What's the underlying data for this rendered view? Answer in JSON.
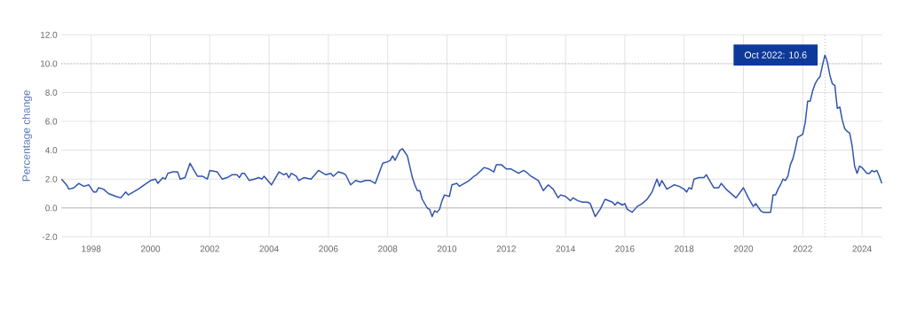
{
  "chart_data": {
    "type": "line",
    "ylabel": "Percentage change",
    "x": [
      "1997-01",
      "1997-03",
      "1997-04",
      "1997-06",
      "1997-08",
      "1997-10",
      "1997-12",
      "1998-02",
      "1998-03",
      "1998-04",
      "1998-06",
      "1998-08",
      "1998-11",
      "1999-01",
      "1999-03",
      "1999-04",
      "1999-08",
      "2000-01",
      "2000-03",
      "2000-04",
      "2000-06",
      "2000-07",
      "2000-08",
      "2000-10",
      "2000-12",
      "2001-01",
      "2001-03",
      "2001-05",
      "2001-07",
      "2001-08",
      "2001-10",
      "2001-12",
      "2002-01",
      "2002-04",
      "2002-06",
      "2002-08",
      "2002-10",
      "2002-12",
      "2003-01",
      "2003-02",
      "2003-03",
      "2003-05",
      "2003-07",
      "2003-09",
      "2003-10",
      "2003-11",
      "2004-02",
      "2004-05",
      "2004-07",
      "2004-08",
      "2004-09",
      "2004-10",
      "2004-12",
      "2005-01",
      "2005-03",
      "2005-06",
      "2005-09",
      "2005-12",
      "2006-02",
      "2006-03",
      "2006-05",
      "2006-07",
      "2006-08",
      "2006-10",
      "2006-12",
      "2007-02",
      "2007-04",
      "2007-06",
      "2007-08",
      "2007-11",
      "2008-01",
      "2008-02",
      "2008-03",
      "2008-04",
      "2008-06",
      "2008-07",
      "2008-09",
      "2008-11",
      "2008-12",
      "2009-01",
      "2009-02",
      "2009-03",
      "2009-05",
      "2009-06",
      "2009-07",
      "2009-08",
      "2009-09",
      "2009-10",
      "2009-11",
      "2009-12",
      "2010-02",
      "2010-03",
      "2010-05",
      "2010-06",
      "2010-08",
      "2010-10",
      "2010-12",
      "2011-01",
      "2011-04",
      "2011-06",
      "2011-08",
      "2011-09",
      "2011-11",
      "2012-01",
      "2012-03",
      "2012-06",
      "2012-08",
      "2012-09",
      "2012-11",
      "2013-02",
      "2013-04",
      "2013-06",
      "2013-08",
      "2013-10",
      "2013-11",
      "2014-01",
      "2014-03",
      "2014-04",
      "2014-06",
      "2014-08",
      "2014-10",
      "2014-11",
      "2015-01",
      "2015-03",
      "2015-05",
      "2015-08",
      "2015-09",
      "2015-10",
      "2015-12",
      "2016-01",
      "2016-02",
      "2016-04",
      "2016-06",
      "2016-08",
      "2016-10",
      "2016-12",
      "2017-02",
      "2017-03",
      "2017-04",
      "2017-06",
      "2017-09",
      "2017-11",
      "2018-01",
      "2018-02",
      "2018-03",
      "2018-04",
      "2018-05",
      "2018-07",
      "2018-09",
      "2018-10",
      "2019-01",
      "2019-03",
      "2019-04",
      "2019-06",
      "2019-08",
      "2019-10",
      "2020-01",
      "2020-03",
      "2020-05",
      "2020-06",
      "2020-08",
      "2020-09",
      "2020-12",
      "2021-01",
      "2021-02",
      "2021-03",
      "2021-04",
      "2021-05",
      "2021-06",
      "2021-07",
      "2021-08",
      "2021-09",
      "2021-10",
      "2021-11",
      "2021-12",
      "2022-01",
      "2022-02",
      "2022-03",
      "2022-04",
      "2022-05",
      "2022-06",
      "2022-07",
      "2022-08",
      "2022-09",
      "2022-10",
      "2022-11",
      "2022-12",
      "2023-01",
      "2023-02",
      "2023-03",
      "2023-04",
      "2023-05",
      "2023-06",
      "2023-07",
      "2023-08",
      "2023-09",
      "2023-10",
      "2023-11",
      "2023-12",
      "2024-01",
      "2024-02",
      "2024-03",
      "2024-04",
      "2024-05",
      "2024-06",
      "2024-07",
      "2024-08",
      "2024-09"
    ],
    "values": [
      2.0,
      1.6,
      1.3,
      1.4,
      1.7,
      1.5,
      1.6,
      1.1,
      1.1,
      1.4,
      1.3,
      1.0,
      0.8,
      0.7,
      1.1,
      0.9,
      1.3,
      1.9,
      2.0,
      1.7,
      2.1,
      2.0,
      2.4,
      2.5,
      2.5,
      2.0,
      2.1,
      3.1,
      2.5,
      2.2,
      2.2,
      2.0,
      2.6,
      2.5,
      2.0,
      2.1,
      2.3,
      2.3,
      2.1,
      2.4,
      2.4,
      1.9,
      2.0,
      2.1,
      2.0,
      2.2,
      1.6,
      2.5,
      2.3,
      2.4,
      2.1,
      2.4,
      2.2,
      1.9,
      2.1,
      2.0,
      2.6,
      2.3,
      2.4,
      2.2,
      2.5,
      2.4,
      2.3,
      1.6,
      1.9,
      1.8,
      1.9,
      1.9,
      1.7,
      3.1,
      3.2,
      3.3,
      3.6,
      3.3,
      4.0,
      4.1,
      3.6,
      2.1,
      1.6,
      1.2,
      1.2,
      0.6,
      0.0,
      -0.1,
      -0.6,
      -0.2,
      -0.3,
      -0.1,
      0.5,
      0.9,
      0.8,
      1.6,
      1.7,
      1.5,
      1.7,
      1.9,
      2.2,
      2.3,
      2.8,
      2.7,
      2.5,
      3.0,
      3.0,
      2.7,
      2.7,
      2.4,
      2.6,
      2.5,
      2.2,
      1.9,
      1.2,
      1.6,
      1.3,
      0.7,
      0.9,
      0.8,
      0.5,
      0.7,
      0.5,
      0.4,
      0.4,
      0.3,
      -0.6,
      -0.1,
      0.6,
      0.4,
      0.2,
      0.4,
      0.2,
      0.3,
      -0.1,
      -0.3,
      0.1,
      0.3,
      0.6,
      1.1,
      2.0,
      1.5,
      1.9,
      1.3,
      1.6,
      1.5,
      1.3,
      1.1,
      1.4,
      1.3,
      2.0,
      2.1,
      2.1,
      2.3,
      1.4,
      1.4,
      1.7,
      1.3,
      1.0,
      0.7,
      1.4,
      0.7,
      0.1,
      0.3,
      -0.2,
      -0.3,
      -0.3,
      0.9,
      0.9,
      1.3,
      1.6,
      2.0,
      1.9,
      2.2,
      3.0,
      3.4,
      4.1,
      4.9,
      5.0,
      5.1,
      5.9,
      7.4,
      7.4,
      8.1,
      8.6,
      8.9,
      9.1,
      9.9,
      10.6,
      10.1,
      9.2,
      8.6,
      8.5,
      6.9,
      7.0,
      6.1,
      5.5,
      5.3,
      5.2,
      4.3,
      2.9,
      2.4,
      2.9,
      2.8,
      2.6,
      2.4,
      2.4,
      2.6,
      2.5,
      2.6,
      2.2,
      1.7
    ],
    "color": "#2f52ad",
    "marker": "none",
    "line_style": "solid",
    "grid": true,
    "xlim": [
      "1997-01",
      "2024-09"
    ],
    "xticks": [
      "1998",
      "2000",
      "2002",
      "2004",
      "2006",
      "2008",
      "2010",
      "2012",
      "2014",
      "2016",
      "2018",
      "2020",
      "2022",
      "2024"
    ],
    "ylim": [
      -2,
      12
    ],
    "yticks": [
      {
        "value": -2,
        "label": "-2.0"
      },
      {
        "value": 0,
        "label": "0.0"
      },
      {
        "value": 2,
        "label": "2.0"
      },
      {
        "value": 4,
        "label": "4.0"
      },
      {
        "value": 6,
        "label": "6.0"
      },
      {
        "value": 8,
        "label": "8.0"
      },
      {
        "value": 10,
        "label": "10.0"
      },
      {
        "value": 12,
        "label": "12.0"
      }
    ],
    "ref_lines": [
      {
        "axis": "y",
        "value": 10,
        "color": "#aaaaaa",
        "line_style": "dotted"
      },
      {
        "axis": "x",
        "value": "2022-10",
        "color": "#aaaaaa",
        "line_style": "dotted"
      }
    ],
    "annotations": [
      {
        "text": "Oct 2022: 10.6",
        "x": "2022-10",
        "y": 10.6
      }
    ]
  }
}
